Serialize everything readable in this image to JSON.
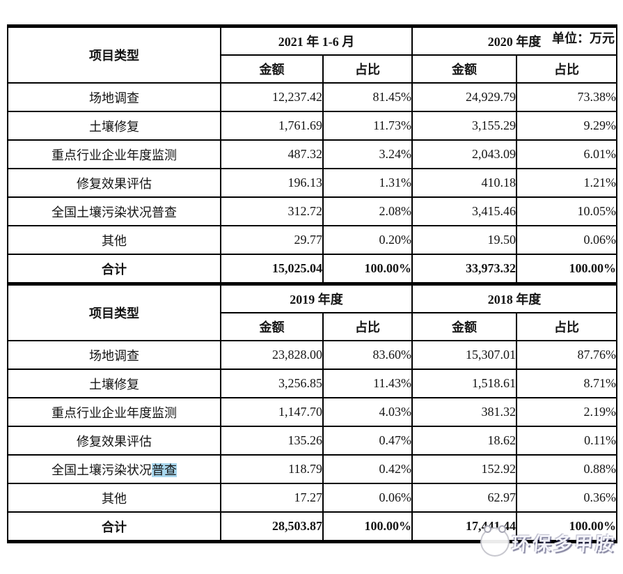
{
  "unit_label": "单位：万元",
  "highlight_color": "#a9d7ee",
  "watermark": {
    "text": "环保多甲胺",
    "logo": "panda-face-logo"
  },
  "tables": [
    {
      "corner_header": "项目类型",
      "periods": [
        "2021 年 1-6 月",
        "2020 年度"
      ],
      "sub_headers": [
        "金额",
        "占比",
        "金额",
        "占比"
      ],
      "rows": [
        {
          "label": "场地调查",
          "values": [
            "12,237.42",
            "81.45%",
            "24,929.79",
            "73.38%"
          ]
        },
        {
          "label": "土壤修复",
          "values": [
            "1,761.69",
            "11.73%",
            "3,155.29",
            "9.29%"
          ]
        },
        {
          "label": "重点行业企业年度监测",
          "values": [
            "487.32",
            "3.24%",
            "2,043.09",
            "6.01%"
          ]
        },
        {
          "label": "修复效果评估",
          "values": [
            "196.13",
            "1.31%",
            "410.18",
            "1.21%"
          ]
        },
        {
          "label": "全国土壤污染状况普查",
          "values": [
            "312.72",
            "2.08%",
            "3,415.46",
            "10.05%"
          ]
        },
        {
          "label": "其他",
          "values": [
            "29.77",
            "0.20%",
            "19.50",
            "0.06%"
          ]
        },
        {
          "label": "合计",
          "bold": true,
          "values": [
            "15,025.04",
            "100.00%",
            "33,973.32",
            "100.00%"
          ]
        }
      ]
    },
    {
      "corner_header": "项目类型",
      "periods": [
        "2019 年度",
        "2018 年度"
      ],
      "sub_headers": [
        "金额",
        "占比",
        "金额",
        "占比"
      ],
      "rows": [
        {
          "label": "场地调查",
          "values": [
            "23,828.00",
            "83.60%",
            "15,307.01",
            "87.76%"
          ]
        },
        {
          "label": "土壤修复",
          "values": [
            "3,256.85",
            "11.43%",
            "1,518.61",
            "8.71%"
          ]
        },
        {
          "label": "重点行业企业年度监测",
          "values": [
            "1,147.70",
            "4.03%",
            "381.32",
            "2.19%"
          ]
        },
        {
          "label": "修复效果评估",
          "values": [
            "135.26",
            "0.47%",
            "18.62",
            "0.11%"
          ]
        },
        {
          "label_prefix": "全国土壤污染状况",
          "label_highlight": "普查",
          "values": [
            "118.79",
            "0.42%",
            "152.92",
            "0.88%"
          ]
        },
        {
          "label": "其他",
          "values": [
            "17.27",
            "0.06%",
            "62.97",
            "0.36%"
          ]
        },
        {
          "label": "合计",
          "bold": true,
          "values": [
            "28,503.87",
            "100.00%",
            "17,441.44",
            "100.00%"
          ]
        }
      ]
    }
  ]
}
